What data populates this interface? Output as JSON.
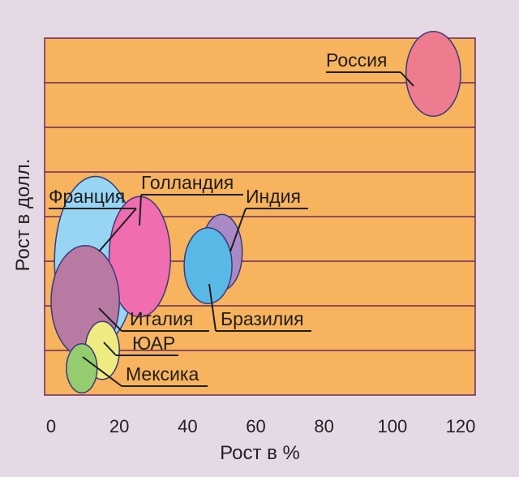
{
  "chart_data": {
    "type": "bubble",
    "xlabel": "Рост в %",
    "ylabel": "Рост в долл.",
    "xlim": [
      0,
      120
    ],
    "ylim": [
      0,
      8
    ],
    "xticks": [
      0,
      20,
      40,
      60,
      80,
      100,
      120
    ],
    "grid": true,
    "colors": {
      "plot_bg": "#f7b35e",
      "grid": "#6b2a5a",
      "page_bg": "#e6d9e6"
    },
    "points": [
      {
        "label": "Россия",
        "x": 112,
        "y": 7.2,
        "rx": 8,
        "ry": 0.95,
        "color": "#ef7b8e"
      },
      {
        "label": "Франция",
        "x": 13,
        "y": 3.0,
        "rx": 12,
        "ry": 1.9,
        "color": "#98d5f4"
      },
      {
        "label": "Голландия",
        "x": 26,
        "y": 3.1,
        "rx": 9,
        "ry": 1.35,
        "color": "#f06db0"
      },
      {
        "label": "Индия",
        "x": 50,
        "y": 3.2,
        "rx": 6,
        "ry": 0.85,
        "color": "#a98ac6"
      },
      {
        "label": "Бразилия",
        "x": 46,
        "y": 2.9,
        "rx": 7,
        "ry": 0.85,
        "color": "#5ab8e6"
      },
      {
        "label": "Италия",
        "x": 10,
        "y": 2.1,
        "rx": 10,
        "ry": 1.25,
        "color": "#b87aa2"
      },
      {
        "label": "ЮАР",
        "x": 15,
        "y": 1.0,
        "rx": 5,
        "ry": 0.65,
        "color": "#eeec80"
      },
      {
        "label": "Мексика",
        "x": 9,
        "y": 0.6,
        "rx": 4.5,
        "ry": 0.55,
        "color": "#96cc70"
      }
    ]
  }
}
